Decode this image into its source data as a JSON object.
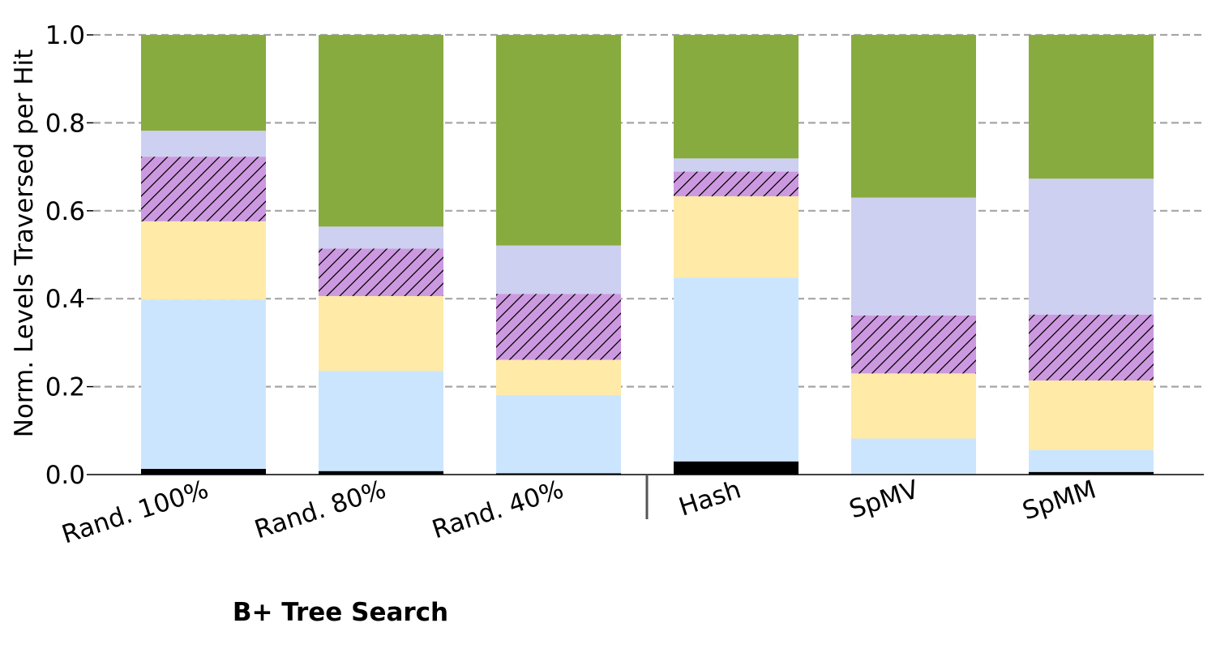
{
  "chart_data": {
    "type": "bar",
    "stacked": true,
    "normalized": true,
    "title": "",
    "xlabel": "",
    "ylabel": "Norm. Levels Traversed per Hit",
    "ylim": [
      0,
      1.0
    ],
    "yticks": [
      "0.0",
      "0.2",
      "0.4",
      "0.6",
      "0.8",
      "1.0"
    ],
    "grid": true,
    "legend": "none",
    "group_label": "B+ Tree Search",
    "categories": [
      "Rand. 100%",
      "Rand. 80%",
      "Rand. 40%",
      "Hash",
      "SpMV",
      "SpMM"
    ],
    "series": [
      {
        "color": "#000000",
        "hatch": false,
        "values": [
          0.013,
          0.008,
          0.003,
          0.03,
          0.0,
          0.006
        ]
      },
      {
        "color": "#cce5ff",
        "hatch": false,
        "values": [
          0.385,
          0.228,
          0.178,
          0.418,
          0.082,
          0.05
        ]
      },
      {
        "color": "#ffeaa7",
        "hatch": false,
        "values": [
          0.178,
          0.17,
          0.08,
          0.185,
          0.148,
          0.158
        ]
      },
      {
        "color": "#cc99e0",
        "hatch": true,
        "values": [
          0.147,
          0.108,
          0.15,
          0.056,
          0.132,
          0.15
        ]
      },
      {
        "color": "#cdd0f0",
        "hatch": false,
        "values": [
          0.059,
          0.05,
          0.11,
          0.03,
          0.268,
          0.309
        ]
      },
      {
        "color": "#88ab3f",
        "hatch": false,
        "values": [
          0.218,
          0.436,
          0.479,
          0.281,
          0.37,
          0.327
        ]
      }
    ]
  }
}
